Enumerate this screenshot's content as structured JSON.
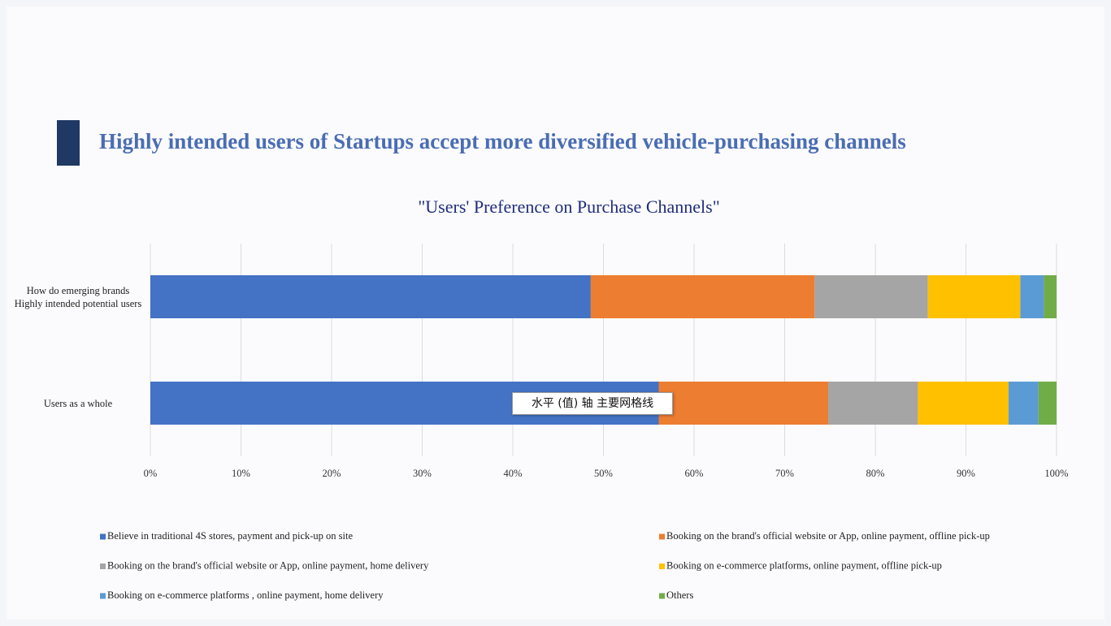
{
  "heading": "Highly intended users of Startups accept more diversified vehicle-purchasing channels",
  "chart_data": {
    "type": "bar",
    "orientation": "horizontal",
    "stacked": true,
    "title": "\"Users' Preference on Purchase Channels\"",
    "categories": [
      "How do emerging brands Highly intended potential users",
      "Users as a whole"
    ],
    "series": [
      {
        "name": "Believe in traditional 4S stores, payment and pick-up on site",
        "color": "#4472c4",
        "values": [
          48.6,
          56.1
        ]
      },
      {
        "name": "Booking on the brand's official website or App, online payment, offline pick-up",
        "color": "#ed7d31",
        "values": [
          24.7,
          18.7
        ]
      },
      {
        "name": "Booking on the brand's official website or App, online payment, home delivery",
        "color": "#a5a5a5",
        "values": [
          12.5,
          9.9
        ]
      },
      {
        "name": "Booking on e-commerce platforms, online payment, offline pick-up",
        "color": "#ffc000",
        "values": [
          10.2,
          10.0
        ]
      },
      {
        "name": "Booking on e-commerce platforms , online payment, home delivery",
        "color": "#5b9bd5",
        "values": [
          2.6,
          3.3
        ]
      },
      {
        "name": "Others",
        "color": "#70ad47",
        "values": [
          1.4,
          2.0
        ]
      }
    ],
    "xlim": [
      0,
      100
    ],
    "xticks": [
      {
        "value": 0,
        "label": "0%"
      },
      {
        "value": 10,
        "label": "10%"
      },
      {
        "value": 20,
        "label": "20%"
      },
      {
        "value": 30,
        "label": "30%"
      },
      {
        "value": 40,
        "label": "40%"
      },
      {
        "value": 50,
        "label": "50%"
      },
      {
        "value": 60,
        "label": "60%"
      },
      {
        "value": 70,
        "label": "70%"
      },
      {
        "value": 80,
        "label": "80%"
      },
      {
        "value": 90,
        "label": "90%"
      },
      {
        "value": 100,
        "label": "100%"
      }
    ],
    "grid": true,
    "tooltip": "水平 (值) 轴 主要网格线"
  }
}
